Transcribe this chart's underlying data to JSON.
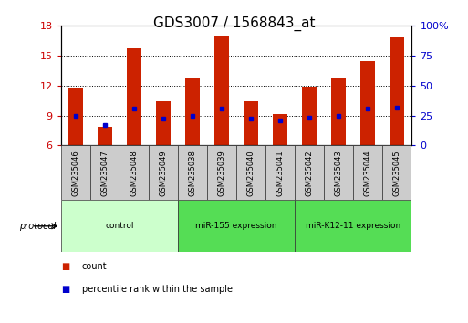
{
  "title": "GDS3007 / 1568843_at",
  "samples": [
    "GSM235046",
    "GSM235047",
    "GSM235048",
    "GSM235049",
    "GSM235038",
    "GSM235039",
    "GSM235040",
    "GSM235041",
    "GSM235042",
    "GSM235043",
    "GSM235044",
    "GSM235045"
  ],
  "bar_values": [
    11.8,
    7.9,
    15.7,
    10.4,
    12.8,
    16.9,
    10.4,
    9.1,
    11.9,
    12.8,
    14.5,
    16.8
  ],
  "blue_dot_values": [
    9.0,
    8.0,
    9.7,
    8.7,
    9.0,
    9.7,
    8.7,
    8.5,
    8.8,
    9.0,
    9.7,
    9.8
  ],
  "bar_color": "#cc2200",
  "dot_color": "#0000cc",
  "ylim_left": [
    6,
    18
  ],
  "ylim_right": [
    0,
    100
  ],
  "yticks_left": [
    6,
    9,
    12,
    15,
    18
  ],
  "yticks_right": [
    0,
    25,
    50,
    75,
    100
  ],
  "ytick_labels_right": [
    "0",
    "25",
    "50",
    "75",
    "100%"
  ],
  "hlines": [
    9,
    12,
    15
  ],
  "group_spans": [
    {
      "start": 0,
      "end": 3,
      "label": "control",
      "color": "#ccffcc"
    },
    {
      "start": 4,
      "end": 7,
      "label": "miR-155 expression",
      "color": "#55dd55"
    },
    {
      "start": 8,
      "end": 11,
      "label": "miR-K12-11 expression",
      "color": "#55dd55"
    }
  ],
  "protocol_label": "protocol",
  "legend_items": [
    {
      "label": "count",
      "color": "#cc2200"
    },
    {
      "label": "percentile rank within the sample",
      "color": "#0000cc"
    }
  ],
  "bar_width": 0.5,
  "title_fontsize": 11,
  "tick_fontsize": 8,
  "axis_label_color_left": "#cc0000",
  "axis_label_color_right": "#0000cc"
}
